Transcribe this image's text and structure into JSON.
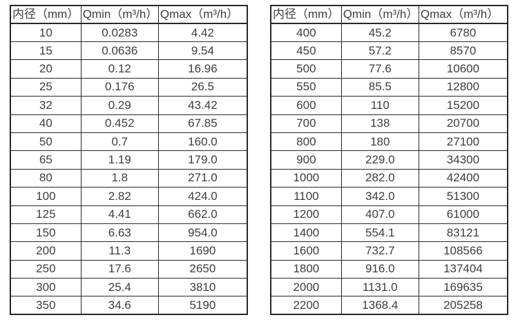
{
  "colors": {
    "background": "#ffffff",
    "border": "#262626",
    "text": "#3d3d3d"
  },
  "tables": [
    {
      "name": "flow-table-small-diameters",
      "headers": [
        "内径（mm）",
        "Qmin（m³/h）",
        "Qmax（m³/h）"
      ],
      "rows": [
        [
          "10",
          "0.0283",
          "4.42"
        ],
        [
          "15",
          "0.0636",
          "9.54"
        ],
        [
          "20",
          "0.12",
          "16.96"
        ],
        [
          "25",
          "0.176",
          "26.5"
        ],
        [
          "32",
          "0.29",
          "43.42"
        ],
        [
          "40",
          "0.452",
          "67.85"
        ],
        [
          "50",
          "0.7",
          "160.0"
        ],
        [
          "65",
          "1.19",
          "179.0"
        ],
        [
          "80",
          "1.8",
          "271.0"
        ],
        [
          "100",
          "2.82",
          "424.0"
        ],
        [
          "125",
          "4.41",
          "662.0"
        ],
        [
          "150",
          "6.63",
          "954.0"
        ],
        [
          "200",
          "11.3",
          "1690"
        ],
        [
          "250",
          "17.6",
          "2650"
        ],
        [
          "300",
          "25.4",
          "3810"
        ],
        [
          "350",
          "34.6",
          "5190"
        ]
      ]
    },
    {
      "name": "flow-table-large-diameters",
      "headers": [
        "内径（mm）",
        "Qmin（m³/h）",
        "Qmax（m³/h）"
      ],
      "rows": [
        [
          "400",
          "45.2",
          "6780"
        ],
        [
          "450",
          "57.2",
          "8570"
        ],
        [
          "500",
          "77.6",
          "10600"
        ],
        [
          "550",
          "85.5",
          "12800"
        ],
        [
          "600",
          "110",
          "15200"
        ],
        [
          "700",
          "138",
          "20700"
        ],
        [
          "800",
          "180",
          "27100"
        ],
        [
          "900",
          "229.0",
          "34300"
        ],
        [
          "1000",
          "282.0",
          "42400"
        ],
        [
          "1100",
          "342.0",
          "51300"
        ],
        [
          "1200",
          "407.0",
          "61000"
        ],
        [
          "1400",
          "554.1",
          "83121"
        ],
        [
          "1600",
          "732.7",
          "108566"
        ],
        [
          "1800",
          "916.0",
          "137404"
        ],
        [
          "2000",
          "1131.0",
          "169635"
        ],
        [
          "2200",
          "1368.4",
          "205258"
        ]
      ]
    }
  ]
}
